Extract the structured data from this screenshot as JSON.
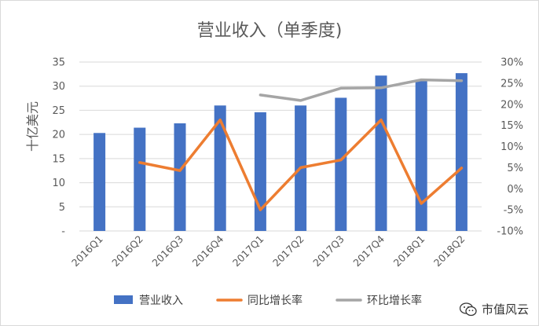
{
  "chart_data": {
    "type": "bar",
    "title": "营业收入（单季度)",
    "ylabel": "十亿美元",
    "categories": [
      "2016Q1",
      "2016Q2",
      "2016Q3",
      "2016Q4",
      "2017Q1",
      "2017Q2",
      "2017Q3",
      "2017Q4",
      "2018Q1",
      "2018Q2"
    ],
    "ylim": [
      0,
      35
    ],
    "y_ticks": [
      "-",
      "5",
      "10",
      "15",
      "20",
      "25",
      "30",
      "35"
    ],
    "y2lim": [
      -10,
      30
    ],
    "y2_ticks": [
      "-10%",
      "-5%",
      "0%",
      "5%",
      "10%",
      "15%",
      "20%",
      "25%",
      "30%"
    ],
    "grid": true,
    "legend_position": "bottom",
    "series": [
      {
        "name": "营业收入",
        "type": "bar",
        "axis": "left",
        "color": "#4472c4",
        "values": [
          20.3,
          21.4,
          22.3,
          26.0,
          24.6,
          26.0,
          27.6,
          32.2,
          31.2,
          32.7
        ]
      },
      {
        "name": "同比增长率",
        "type": "line",
        "axis": "right",
        "color": "#ed7d31",
        "values": [
          null,
          6.2,
          4.3,
          16.3,
          -5.0,
          5.0,
          6.8,
          16.3,
          -3.5,
          4.9
        ]
      },
      {
        "name": "环比增长率",
        "type": "line",
        "axis": "right",
        "color": "#a5a5a5",
        "values": [
          null,
          null,
          null,
          null,
          22.2,
          20.9,
          23.8,
          23.9,
          25.8,
          25.6
        ]
      }
    ]
  },
  "watermark": {
    "text": "市值风云",
    "icon": "wechat-icon"
  }
}
